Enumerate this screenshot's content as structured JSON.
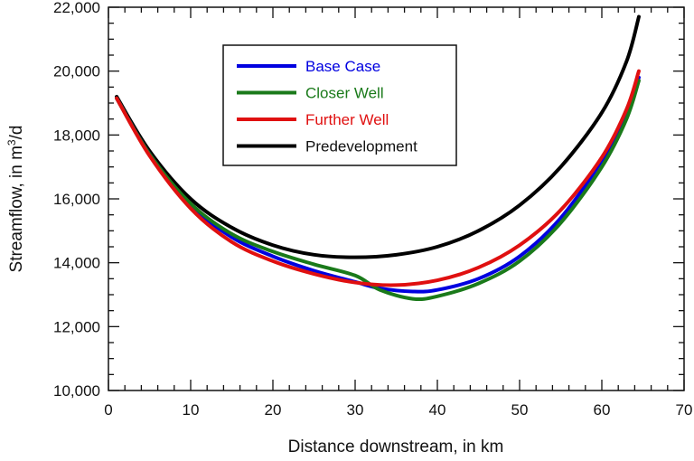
{
  "chart_data": {
    "type": "line",
    "title": "",
    "xlabel": "Distance downstream, in km",
    "ylabel_main": "Streamflow, in m",
    "ylabel_sup": "3",
    "ylabel_end": "/d",
    "xlim": [
      0,
      70
    ],
    "ylim": [
      10000,
      22000
    ],
    "x_ticks": [
      0,
      10,
      20,
      30,
      40,
      50,
      60,
      70
    ],
    "x_tick_labels": [
      "0",
      "10",
      "20",
      "30",
      "40",
      "50",
      "60",
      "70"
    ],
    "y_ticks": [
      10000,
      12000,
      14000,
      16000,
      18000,
      20000,
      22000
    ],
    "y_tick_labels": [
      "10,000",
      "12,000",
      "14,000",
      "16,000",
      "18,000",
      "20,000",
      "22,000"
    ],
    "grid": false,
    "legend_position": "top-center",
    "series": [
      {
        "name": "Base Case",
        "color": "#0000e0",
        "x": [
          1,
          5,
          10,
          15,
          20,
          25,
          30,
          33,
          37,
          40,
          45,
          50,
          55,
          60,
          63,
          64.5
        ],
        "y": [
          19150,
          17400,
          15800,
          14800,
          14200,
          13750,
          13400,
          13200,
          13100,
          13150,
          13500,
          14200,
          15400,
          17200,
          18700,
          19800
        ]
      },
      {
        "name": "Closer Well",
        "color": "#1a7a1a",
        "x": [
          1,
          5,
          10,
          15,
          20,
          25,
          30,
          33,
          37,
          40,
          45,
          50,
          55,
          60,
          63,
          64.5
        ],
        "y": [
          19150,
          17400,
          15850,
          14900,
          14350,
          13950,
          13600,
          13150,
          12870,
          12950,
          13350,
          14050,
          15250,
          17000,
          18500,
          19700
        ]
      },
      {
        "name": "Further Well",
        "color": "#e01010",
        "x": [
          1,
          5,
          10,
          15,
          20,
          25,
          30,
          35,
          40,
          45,
          50,
          55,
          60,
          63,
          64.5
        ],
        "y": [
          19150,
          17350,
          15700,
          14650,
          14050,
          13650,
          13380,
          13300,
          13450,
          13850,
          14550,
          15650,
          17300,
          18800,
          20000
        ]
      },
      {
        "name": "Predevelopment",
        "color": "#000000",
        "x": [
          1,
          5,
          10,
          15,
          20,
          25,
          30,
          35,
          40,
          45,
          50,
          55,
          60,
          63,
          64.5
        ],
        "y": [
          19200,
          17500,
          16000,
          15100,
          14550,
          14250,
          14170,
          14250,
          14500,
          15000,
          15800,
          17000,
          18700,
          20300,
          21700
        ]
      }
    ]
  }
}
